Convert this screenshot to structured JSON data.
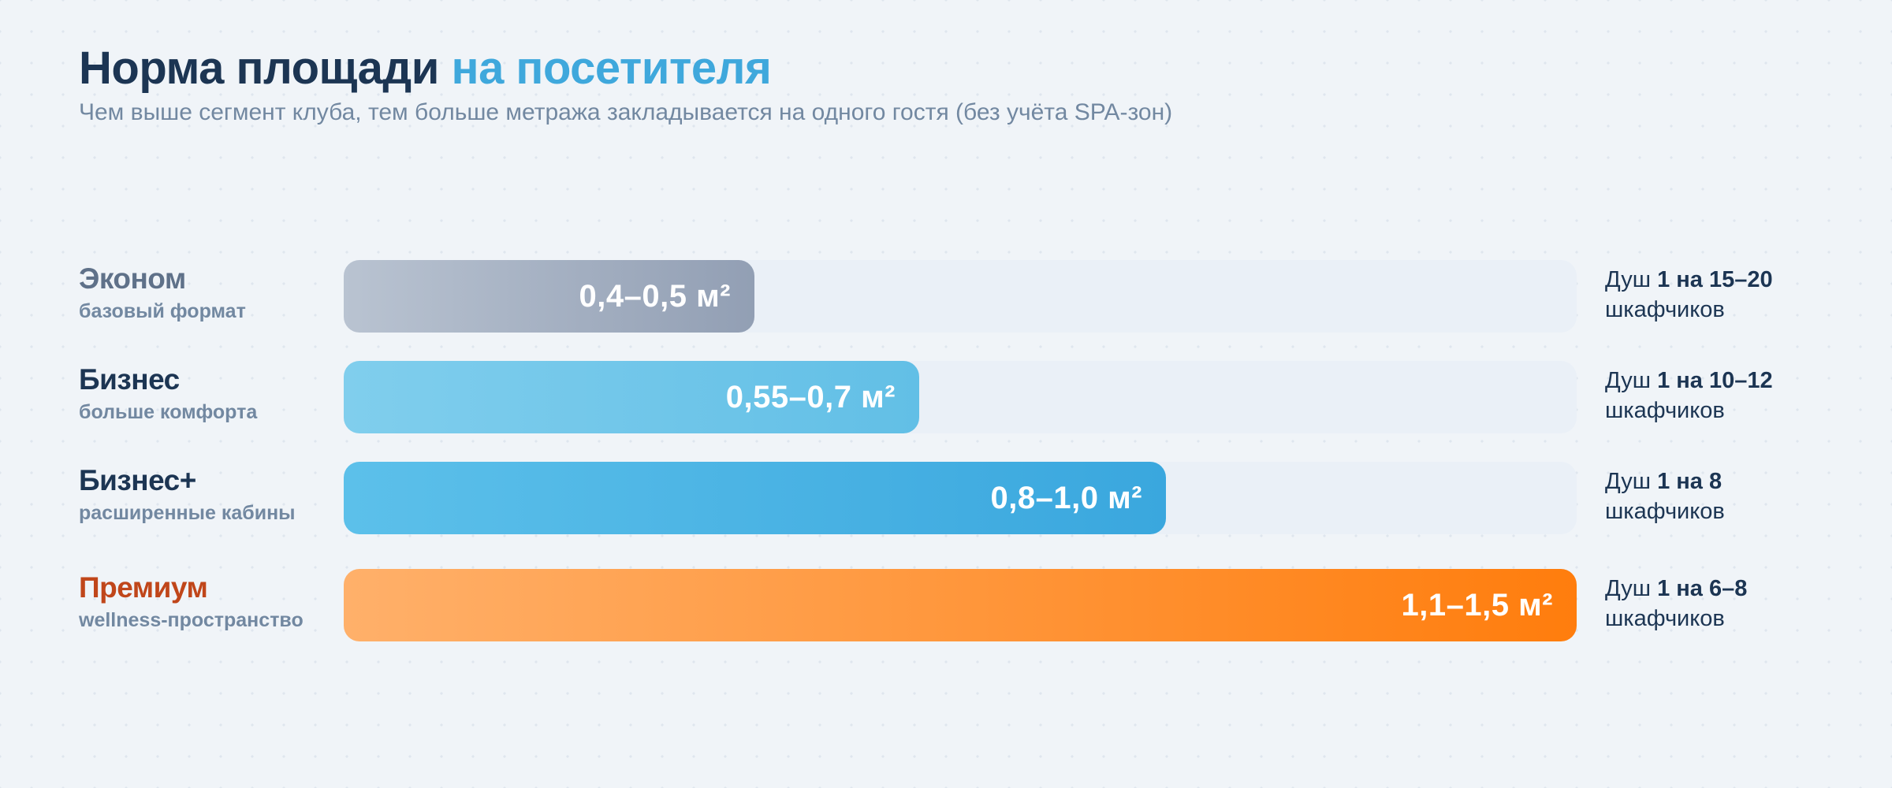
{
  "title": {
    "main": "Норма площади",
    "accent": "на посетителя"
  },
  "subtitle": "Чем выше сегмент клуба, тем больше метража закладывается на одного гостя (без учёта SPA-зон)",
  "colors": {
    "title": "#1c3553",
    "accent": "#3fa8dc",
    "muted": "#7288a1"
  },
  "chart_data": {
    "type": "bar",
    "orientation": "horizontal",
    "unit": "м²",
    "xlim": [
      0,
      1.5
    ],
    "grid": false,
    "legend": "none",
    "categories": [
      "Эконом",
      "Бизнес",
      "Бизнес+",
      "Премиум"
    ],
    "rows": [
      {
        "name": "Эконом",
        "subtitle": "базовый формат",
        "range": [
          0.4,
          0.5
        ],
        "value_label": "0,4–0,5 м²",
        "shower_prefix": "Душ",
        "shower_ratio": "1 на 15–20",
        "shower_unit": "шкафчиков",
        "name_color": "#5f7189",
        "bar_colors": [
          "#b9c3d1",
          "#929fb4"
        ]
      },
      {
        "name": "Бизнес",
        "subtitle": "больше комфорта",
        "range": [
          0.55,
          0.7
        ],
        "value_label": "0,55–0,7 м²",
        "shower_prefix": "Душ",
        "shower_ratio": "1 на 10–12",
        "shower_unit": "шкафчиков",
        "name_color": "#1c3553",
        "bar_colors": [
          "#80ceed",
          "#62bfe6"
        ]
      },
      {
        "name": "Бизнес+",
        "subtitle": "расширенные кабины",
        "range": [
          0.8,
          1.0
        ],
        "value_label": "0,8–1,0 м²",
        "shower_prefix": "Душ",
        "shower_ratio": "1 на 8",
        "shower_unit": "шкафчиков",
        "name_color": "#1c3553",
        "bar_colors": [
          "#5cc0ea",
          "#3aa7de"
        ]
      },
      {
        "name": "Премиум",
        "subtitle": "wellness-пространство",
        "range": [
          1.1,
          1.5
        ],
        "value_label": "1,1–1,5 м²",
        "shower_prefix": "Душ",
        "shower_ratio": "1 на 6–8",
        "shower_unit": "шкафчиков",
        "name_color": "#c0461a",
        "bar_colors": [
          "#ffb06a",
          "#ff7d0d"
        ]
      }
    ]
  }
}
